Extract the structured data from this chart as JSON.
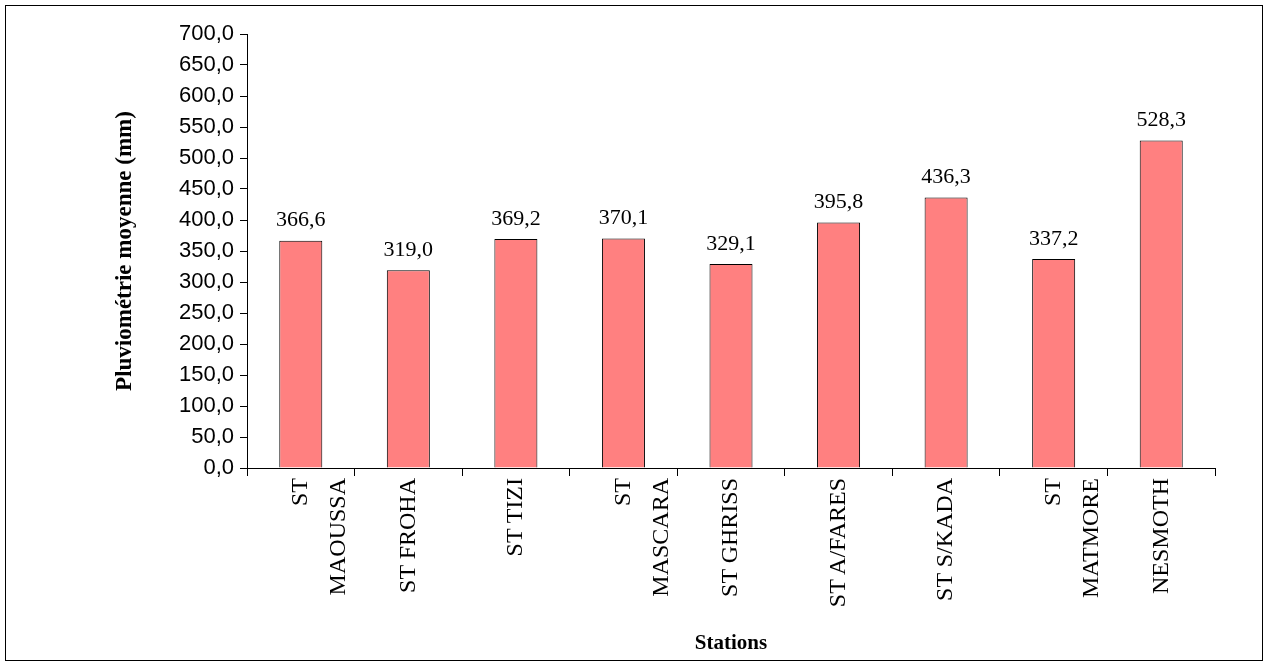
{
  "chart_data": {
    "type": "bar",
    "xlabel": "Stations",
    "ylabel": "Pluviométrie moyenne (mm)",
    "categories": [
      "ST MAOUSSA",
      "ST FROHA",
      "ST TIZI",
      "ST MASCARA",
      "ST GHRISS",
      "ST A/FARES",
      "ST S/KADA",
      "ST MATMORE",
      "NESMOTH"
    ],
    "values": [
      366.6,
      319.0,
      369.2,
      370.1,
      329.1,
      395.8,
      436.3,
      337.2,
      528.3
    ],
    "value_labels": [
      "366,6",
      "319,0",
      "369,2",
      "370,1",
      "329,1",
      "395,8",
      "436,3",
      "337,2",
      "528,3"
    ],
    "color": "#ff8080",
    "ylim": [
      0,
      700
    ],
    "yticks": [
      {
        "value": 0,
        "label": "0,0"
      },
      {
        "value": 50,
        "label": "50,0"
      },
      {
        "value": 100,
        "label": "100,0"
      },
      {
        "value": 150,
        "label": "150,0"
      },
      {
        "value": 200,
        "label": "200,0"
      },
      {
        "value": 250,
        "label": "250,0"
      },
      {
        "value": 300,
        "label": "300,0"
      },
      {
        "value": 350,
        "label": "350,0"
      },
      {
        "value": 400,
        "label": "400,0"
      },
      {
        "value": 450,
        "label": "450,0"
      },
      {
        "value": 500,
        "label": "500,0"
      },
      {
        "value": 550,
        "label": "550,0"
      },
      {
        "value": 600,
        "label": "600,0"
      },
      {
        "value": 650,
        "label": "650,0"
      },
      {
        "value": 700,
        "label": "700,0"
      }
    ],
    "grid": false
  }
}
